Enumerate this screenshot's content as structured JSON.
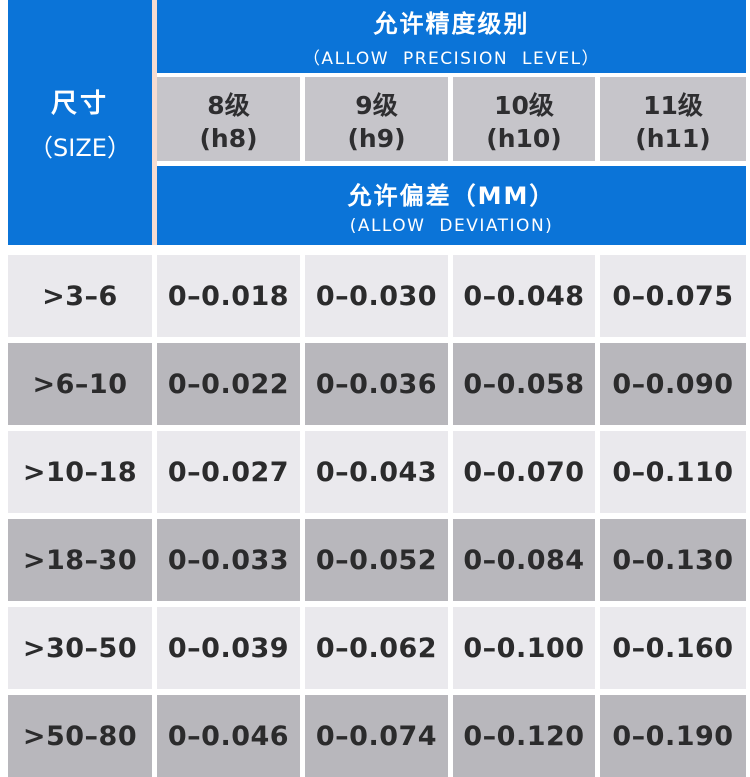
{
  "colors": {
    "header_blue": "#0b74d8",
    "level_cell_gray": "#c6c5ca",
    "row_light_gray": "#eae9ed",
    "row_dark_gray": "#b8b7bc",
    "divider_peach": "#f6dcd2",
    "text_dark": "#2b2b2c",
    "text_white": "#ffffff"
  },
  "table": {
    "size_header": {
      "line1": "尺寸",
      "line2": "（SIZE）"
    },
    "precision_header": {
      "line1": "允许精度级别",
      "line2": "（ALLOW PRECISION LEVEL）"
    },
    "level_columns": [
      {
        "line1": "8级",
        "line2": "(h8)"
      },
      {
        "line1": "9级",
        "line2": "(h9)"
      },
      {
        "line1": "10级",
        "line2": "(h10)"
      },
      {
        "line1": "11级",
        "line2": "(h11)"
      }
    ],
    "deviation_header": {
      "line1": "允许偏差（MM）",
      "line2": "(ALLOW DEVIATION)"
    },
    "rows": [
      {
        "size": ">3–6",
        "values": [
          "0–0.018",
          "0–0.030",
          "0–0.048",
          "0–0.075"
        ]
      },
      {
        "size": ">6–10",
        "values": [
          "0–0.022",
          "0–0.036",
          "0–0.058",
          "0–0.090"
        ]
      },
      {
        "size": ">10–18",
        "values": [
          "0–0.027",
          "0–0.043",
          "0–0.070",
          "0–0.110"
        ]
      },
      {
        "size": ">18–30",
        "values": [
          "0–0.033",
          "0–0.052",
          "0–0.084",
          "0–0.130"
        ]
      },
      {
        "size": ">30–50",
        "values": [
          "0–0.039",
          "0–0.062",
          "0–0.100",
          "0–0.160"
        ]
      },
      {
        "size": ">50–80",
        "values": [
          "0–0.046",
          "0–0.074",
          "0–0.120",
          "0–0.190"
        ]
      }
    ]
  }
}
